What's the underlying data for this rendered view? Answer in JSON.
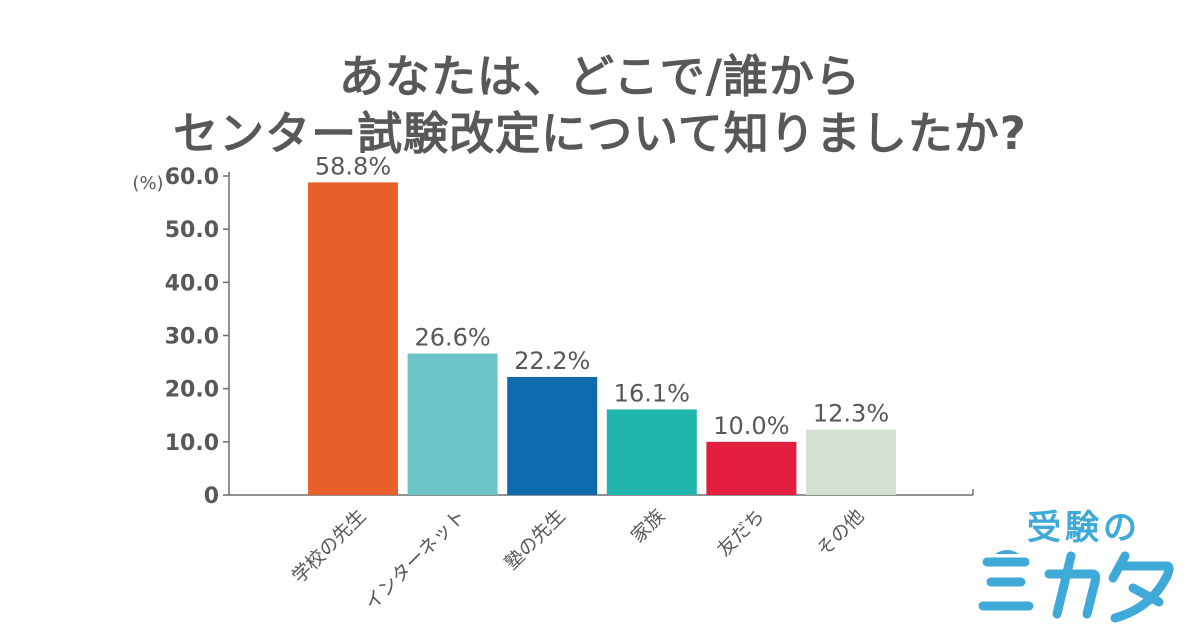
{
  "title": {
    "line1": "あなたは、どこで/誰から",
    "line2": "センター試験改定について知りましたか?"
  },
  "chart_data": {
    "type": "bar",
    "unit_label": "(%)",
    "categories": [
      "学校の先生",
      "インターネット",
      "塾の先生",
      "家族",
      "友だち",
      "その他"
    ],
    "values": [
      58.8,
      26.6,
      22.2,
      16.1,
      10.0,
      12.3
    ],
    "value_labels": [
      "58.8%",
      "26.6%",
      "22.2%",
      "16.1%",
      "10.0%",
      "12.3%"
    ],
    "colors": [
      "#e8612b",
      "#6dc4c8",
      "#0f6aae",
      "#1fb5ad",
      "#e31d3d",
      "#d5e0d3"
    ],
    "ylim": [
      0,
      60
    ],
    "yticks": [
      0,
      10,
      20,
      30,
      40,
      50,
      60
    ],
    "ytick_labels": [
      "0",
      "10.0",
      "20.0",
      "30.0",
      "40.0",
      "50.0",
      "60.0"
    ],
    "xlabel": "",
    "ylabel": "",
    "grid": false,
    "legend": "none"
  },
  "logo": {
    "text": "受験の",
    "mark": "ミカタ",
    "color": "#3fa9d8"
  }
}
